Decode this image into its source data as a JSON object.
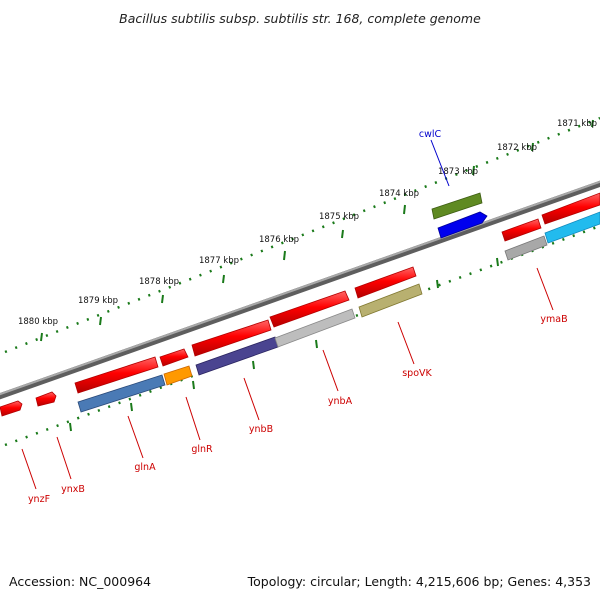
{
  "title": "Bacillus subtilis subsp. subtilis str. 168, complete genome",
  "footer": {
    "accession": "Accession: NC_000964",
    "summary": "Topology: circular; Length: 4,215,606 bp; Genes: 4,353"
  },
  "colors": {
    "label_forward": "#0000cc",
    "label_reverse": "#cc0000",
    "backbone": "#7a7a7a",
    "ticks": "#1a7a1a"
  },
  "ticks": [
    {
      "label": "1871 kbp"
    },
    {
      "label": "1872 kbp"
    },
    {
      "label": "1873 kbp"
    },
    {
      "label": "1874 kbp"
    },
    {
      "label": "1875 kbp"
    },
    {
      "label": "1876 kbp"
    },
    {
      "label": "1877 kbp"
    },
    {
      "label": "1878 kbp"
    },
    {
      "label": "1879 kbp"
    },
    {
      "label": "1880 kbp"
    }
  ],
  "gene_labels": [
    {
      "name": "cwlC",
      "strand": "forward"
    },
    {
      "name": "ymaB",
      "strand": "reverse"
    },
    {
      "name": "spoVK",
      "strand": "reverse"
    },
    {
      "name": "ynbA",
      "strand": "reverse"
    },
    {
      "name": "ynbB",
      "strand": "reverse"
    },
    {
      "name": "glnR",
      "strand": "reverse"
    },
    {
      "name": "glnA",
      "strand": "reverse"
    },
    {
      "name": "ynxB",
      "strand": "reverse"
    },
    {
      "name": "ynzF",
      "strand": "reverse"
    }
  ]
}
